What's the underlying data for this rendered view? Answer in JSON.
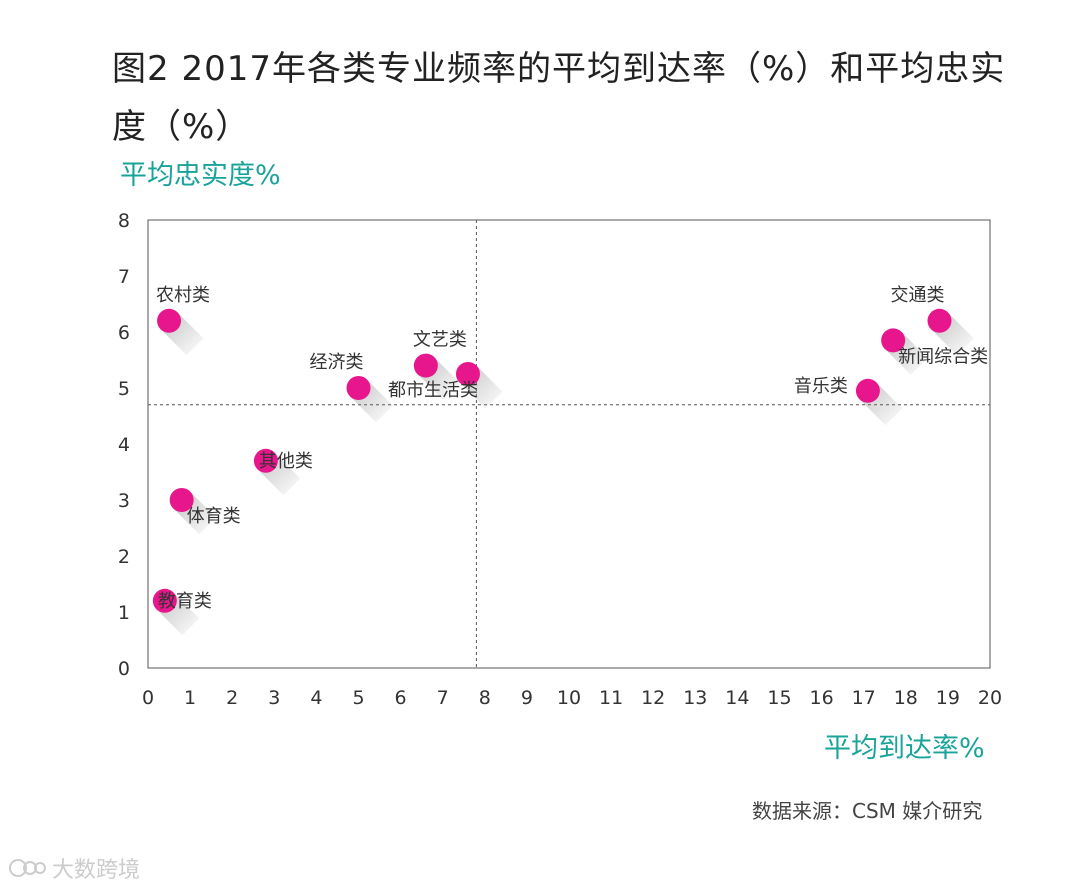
{
  "header": {
    "title": "图2  2017年各类专业频率的平均到达率（%）和平均忠实度（%）",
    "source": "数据来源：CSM 媒介研究",
    "watermark": "大数跨境"
  },
  "colors": {
    "point": "#e8168c",
    "accent": "#19a39a",
    "grid": "#555555"
  },
  "chart_data": {
    "type": "scatter",
    "title": "图2  2017年各类专业频率的平均到达率（%）和平均忠实度（%）",
    "xlabel": "平均到达率%",
    "ylabel": "平均忠实度%",
    "xlim": [
      0,
      20
    ],
    "ylim": [
      0,
      8
    ],
    "xticks": [
      0,
      1,
      2,
      3,
      4,
      5,
      6,
      7,
      8,
      9,
      10,
      11,
      12,
      13,
      14,
      15,
      16,
      17,
      18,
      19,
      20
    ],
    "yticks": [
      0,
      1,
      2,
      3,
      4,
      5,
      6,
      7,
      8
    ],
    "reference_lines": {
      "x": 7.8,
      "y": 4.7
    },
    "points": [
      {
        "label": "农村类",
        "x": 0.5,
        "y": 6.2,
        "label_pos": "above"
      },
      {
        "label": "教育类",
        "x": 0.4,
        "y": 1.2,
        "label_pos": "right"
      },
      {
        "label": "体育类",
        "x": 0.8,
        "y": 3.0,
        "label_pos": "below-right"
      },
      {
        "label": "其他类",
        "x": 2.8,
        "y": 3.7,
        "label_pos": "right"
      },
      {
        "label": "经济类",
        "x": 5.0,
        "y": 5.0,
        "label_pos": "above-left"
      },
      {
        "label": "文艺类",
        "x": 6.6,
        "y": 5.4,
        "label_pos": "above"
      },
      {
        "label": "都市生活类",
        "x": 7.6,
        "y": 5.25,
        "label_pos": "below-left"
      },
      {
        "label": "音乐类",
        "x": 17.1,
        "y": 4.95,
        "label_pos": "left"
      },
      {
        "label": "新闻综合类",
        "x": 17.7,
        "y": 5.85,
        "label_pos": "below-right"
      },
      {
        "label": "交通类",
        "x": 18.8,
        "y": 6.2,
        "label_pos": "above-left"
      }
    ]
  }
}
